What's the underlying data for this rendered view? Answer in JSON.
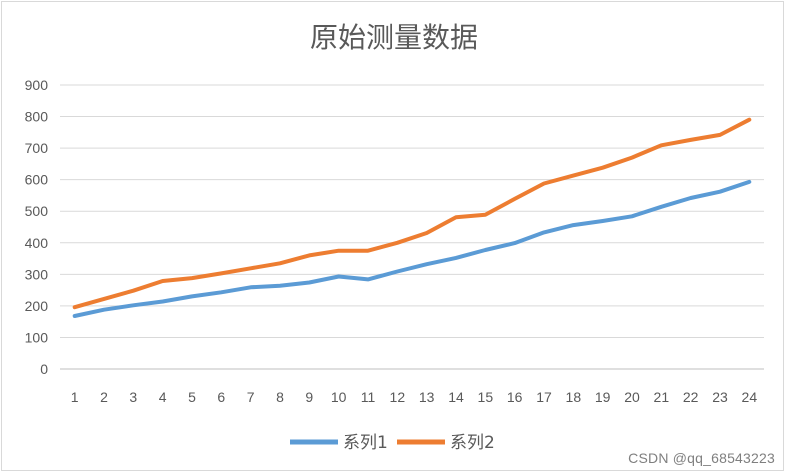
{
  "chart_data": {
    "type": "line",
    "title": "原始测量数据",
    "categories": [
      "1",
      "2",
      "3",
      "4",
      "5",
      "6",
      "7",
      "8",
      "9",
      "10",
      "11",
      "12",
      "13",
      "14",
      "15",
      "16",
      "17",
      "18",
      "19",
      "20",
      "21",
      "22",
      "23",
      "24"
    ],
    "series": [
      {
        "name": "系列1",
        "color": "#5B9BD5",
        "values": [
          168,
          188,
          202,
          214,
          230,
          243,
          259,
          264,
          274,
          293,
          284,
          309,
          332,
          352,
          377,
          399,
          433,
          456,
          469,
          484,
          514,
          542,
          562,
          593
        ]
      },
      {
        "name": "系列2",
        "color": "#ED7D31",
        "values": [
          196,
          222,
          248,
          279,
          288,
          303,
          319,
          335,
          360,
          375,
          375,
          400,
          431,
          481,
          489,
          539,
          588,
          613,
          638,
          670,
          709,
          726,
          742,
          790
        ]
      }
    ],
    "ylim": [
      0,
      900
    ],
    "yticks": [
      0,
      100,
      200,
      300,
      400,
      500,
      600,
      700,
      800,
      900
    ],
    "grid": true,
    "legend": "bottom-center",
    "xlabel": "",
    "ylabel": ""
  },
  "watermark": "CSDN @qq_68543223"
}
